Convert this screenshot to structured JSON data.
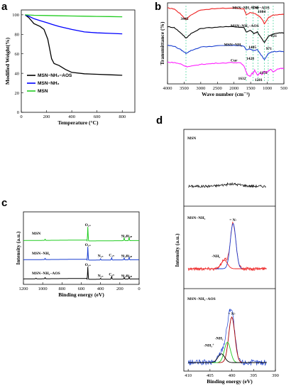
{
  "panels": {
    "a": "a",
    "b": "b",
    "c": "c",
    "d": "d"
  },
  "chart_data": [
    {
      "id": "a",
      "type": "line",
      "xlabel": "Temperature (°C)",
      "ylabel": "Modified Weight(%)",
      "xlim": [
        0,
        900
      ],
      "ylim": [
        0,
        105
      ],
      "xticks": [
        0,
        200,
        400,
        600,
        800
      ],
      "yticks": [
        0,
        20,
        40,
        60,
        80,
        100
      ],
      "legend": "bottom-left",
      "series": [
        {
          "name": "MSN−NH₂−AOS",
          "color": "#000000",
          "x": [
            30,
            60,
            100,
            150,
            180,
            210,
            240,
            260,
            300,
            350,
            400,
            500,
            600,
            700,
            800
          ],
          "y": [
            100,
            97,
            91,
            88,
            85,
            75,
            55,
            50,
            48,
            44,
            41,
            39.5,
            39,
            38.5,
            38
          ]
        },
        {
          "name": "MSN−NH₂",
          "color": "#0000ff",
          "x": [
            30,
            60,
            100,
            150,
            200,
            250,
            300,
            400,
            500,
            600,
            700,
            800
          ],
          "y": [
            100,
            98.5,
            96,
            94,
            92,
            90,
            88,
            85,
            82.5,
            81.5,
            81,
            80.5
          ]
        },
        {
          "name": "MSN",
          "color": "#22cc22",
          "x": [
            30,
            100,
            200,
            300,
            400,
            500,
            600,
            700,
            800
          ],
          "y": [
            100,
            99.5,
            99.3,
            99,
            98.8,
            98.6,
            98.4,
            98.2,
            98
          ]
        }
      ]
    },
    {
      "id": "b",
      "type": "line",
      "xlabel": "Wave number (cm⁻¹)",
      "ylabel": "Transmittance (%)",
      "xlim": [
        4000,
        500
      ],
      "xticks": [
        4000,
        3500,
        3000,
        2500,
        2000,
        1500,
        1000,
        500
      ],
      "series": [
        {
          "name": "MSN−NH₂−Cur−AOS",
          "color": "#ee2222",
          "offset": 3.0,
          "x": [
            4000,
            3800,
            3600,
            3445,
            3300,
            3000,
            2500,
            2000,
            1700,
            1632,
            1500,
            1400,
            1246,
            1150,
            1084,
            971,
            821,
            600,
            500
          ],
          "y": [
            0.95,
            0.9,
            0.6,
            0.3,
            0.55,
            0.85,
            0.92,
            0.95,
            0.9,
            0.55,
            0.7,
            0.65,
            0.5,
            0.3,
            0.05,
            0.4,
            0.55,
            0.6,
            0.6
          ]
        },
        {
          "name": "MSN−NH₂−AOS",
          "color": "#000000",
          "offset": 2.0,
          "x": [
            4000,
            3800,
            3600,
            3445,
            3300,
            3000,
            2500,
            2000,
            1700,
            1632,
            1500,
            1405,
            1300,
            1084,
            971,
            821,
            600,
            500
          ],
          "y": [
            0.9,
            0.85,
            0.55,
            0.25,
            0.5,
            0.8,
            0.88,
            0.9,
            0.85,
            0.6,
            0.7,
            0.5,
            0.6,
            0.0,
            0.35,
            0.5,
            0.55,
            0.55
          ]
        },
        {
          "name": "MSN−NH₂",
          "color": "#1a3fd0",
          "offset": 1.0,
          "x": [
            4000,
            3800,
            3600,
            3445,
            3300,
            3000,
            2500,
            2000,
            1700,
            1632,
            1500,
            1428,
            1300,
            1084,
            971,
            821,
            600,
            500
          ],
          "y": [
            0.85,
            0.8,
            0.6,
            0.4,
            0.55,
            0.75,
            0.82,
            0.85,
            0.8,
            0.6,
            0.65,
            0.55,
            0.6,
            0.05,
            0.4,
            0.5,
            0.5,
            0.5
          ]
        },
        {
          "name": "Cur",
          "color": "#ff22ff",
          "offset": 0.0,
          "x": [
            4000,
            3800,
            3600,
            3500,
            3400,
            3200,
            3000,
            2800,
            2500,
            2000,
            1800,
            1700,
            1632,
            1600,
            1510,
            1460,
            1428,
            1380,
            1281,
            1230,
            1155,
            1100,
            1030,
            971,
            900,
            821,
            700,
            600,
            500
          ],
          "y": [
            0.9,
            0.88,
            0.8,
            0.7,
            0.65,
            0.7,
            0.78,
            0.8,
            0.85,
            0.88,
            0.85,
            0.7,
            0.35,
            0.2,
            0.1,
            0.3,
            0.25,
            0.45,
            0.15,
            0.3,
            0.2,
            0.4,
            0.3,
            0.4,
            0.5,
            0.35,
            0.5,
            0.55,
            0.55
          ]
        }
      ],
      "annotations": [
        "3445",
        "1632",
        "1428",
        "1405",
        "1281",
        "1246",
        "1155",
        "1084",
        "971",
        "821"
      ],
      "labels": [
        "MSN−NH₂−Cur−AOS",
        "MSN−NH₂−AOS",
        "MSN−NH₂",
        "Cur"
      ]
    },
    {
      "id": "c",
      "type": "line",
      "xlabel": "Binding energy (eV)",
      "ylabel": "Intensity (a.u.)",
      "xlim": [
        1200,
        0
      ],
      "xticks": [
        1200,
        1000,
        800,
        600,
        400,
        200,
        0
      ],
      "series": [
        {
          "name": "MSN",
          "color": "#22cc22",
          "offset": 2.0,
          "peaks": [
            {
              "x": 532,
              "h": 0.9
            },
            {
              "x": 975,
              "h": 0.08
            },
            {
              "x": 155,
              "h": 0.18
            },
            {
              "x": 104,
              "h": 0.22
            }
          ],
          "base": [
            0.2,
            0.12,
            0.05
          ]
        },
        {
          "name": "MSN−NH₂",
          "color": "#1a3fd0",
          "offset": 1.0,
          "peaks": [
            {
              "x": 532,
              "h": 0.85
            },
            {
              "x": 975,
              "h": 0.08
            },
            {
              "x": 400,
              "h": 0.08
            },
            {
              "x": 285,
              "h": 0.15
            },
            {
              "x": 155,
              "h": 0.12
            },
            {
              "x": 104,
              "h": 0.15
            }
          ],
          "base": [
            0.2,
            0.12,
            0.05
          ]
        },
        {
          "name": "MSN−NH₂−AOS",
          "color": "#000000",
          "offset": 0.0,
          "peaks": [
            {
              "x": 532,
              "h": 0.8
            },
            {
              "x": 975,
              "h": 0.08
            },
            {
              "x": 1070,
              "h": 0.05
            },
            {
              "x": 400,
              "h": 0.06
            },
            {
              "x": 285,
              "h": 0.18
            },
            {
              "x": 155,
              "h": 0.1
            },
            {
              "x": 104,
              "h": 0.12
            }
          ],
          "base": [
            0.2,
            0.12,
            0.05
          ]
        }
      ],
      "labels": [
        "MSN",
        "MSN−NH₂",
        "MSN−NH₂−AOS"
      ],
      "peak_labels": [
        "O₁ₛ",
        "N₁ₛ",
        "C₁ₛ",
        "Si₂ₛ",
        "Si₂ₚ"
      ]
    },
    {
      "id": "d",
      "type": "line",
      "xlabel": "Binding energy (eV)",
      "ylabel": "Intensity (a.u.)",
      "xlim": [
        411,
        390
      ],
      "xticks": [
        410,
        405,
        400,
        395,
        390
      ],
      "subpanels": [
        {
          "name": "MSN",
          "color": "#000000"
        },
        {
          "name": "MSN−NH₂",
          "color": "#ee2222",
          "fit_peaks": [
            {
              "center": 399.7,
              "amp": 0.8,
              "width": 0.9,
              "color": "#1a3fd0",
              "label": "= N-"
            },
            {
              "center": 401.7,
              "amp": 0.15,
              "width": 1.0,
              "color": "#ee2222",
              "label": "-NH₂"
            }
          ]
        },
        {
          "name": "MSN−NH₂−AOS",
          "color": "#1a3fd0",
          "fit_peaks": [
            {
              "center": 400.0,
              "amp": 0.78,
              "width": 1.0,
              "color": "#aa0000",
              "label": "= N-"
            },
            {
              "center": 401.0,
              "amp": 0.35,
              "width": 1.0,
              "color": "#22cc22",
              "label": "-NH₂"
            },
            {
              "center": 402.4,
              "amp": 0.15,
              "width": 1.1,
              "color": "#000000",
              "label": "-NH₃⁺"
            }
          ]
        }
      ]
    }
  ]
}
